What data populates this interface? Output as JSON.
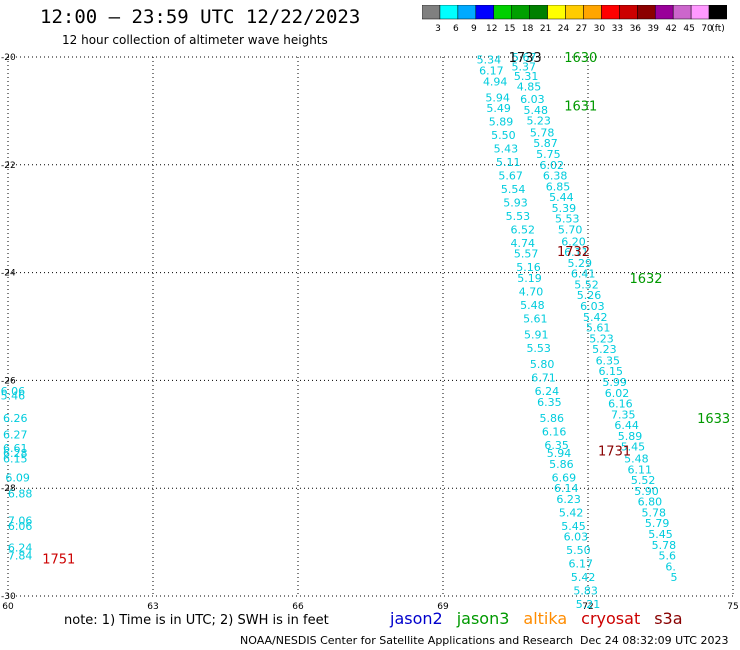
{
  "header": {
    "title": "12:00 – 23:59 UTC 12/22/2023",
    "subtitle": "12 hour collection of altimeter wave heights"
  },
  "colorbar": {
    "colors": [
      "#808080",
      "#00ffff",
      "#00aaff",
      "#0000ff",
      "#00d000",
      "#00a000",
      "#008000",
      "#ffff00",
      "#ffcc00",
      "#ffa500",
      "#ff0000",
      "#cc0000",
      "#8b0000",
      "#990099",
      "#cc66cc",
      "#ff99ff",
      "#000000"
    ],
    "labels": [
      "3",
      "6",
      "9",
      "12",
      "15",
      "18",
      "21",
      "24",
      "27",
      "30",
      "33",
      "36",
      "39",
      "42",
      "45",
      "70",
      "(ft)"
    ]
  },
  "note": "note:  1) Time is in UTC;  2) SWH is in feet",
  "legend": [
    {
      "name": "jason2",
      "color": "#0000cc"
    },
    {
      "name": "jason3",
      "color": "#009900"
    },
    {
      "name": "altika",
      "color": "#ff8c00"
    },
    {
      "name": "cryosat",
      "color": "#cc0000"
    },
    {
      "name": "s3a",
      "color": "#880000"
    }
  ],
  "footer": {
    "left": "NOAA/NESDIS Center for Satellite Applications and Research",
    "right": "Dec 24 08:32:09 UTC 2023"
  },
  "chart_data": {
    "type": "scatter",
    "xlim": [
      60,
      75
    ],
    "ylim": [
      -30,
      -20
    ],
    "xticks": [
      "60",
      "63",
      "66",
      "69",
      "72",
      "75"
    ],
    "yticks": [
      "-20",
      "-22",
      "-24",
      "-26",
      "-28",
      "-30"
    ],
    "grid": true,
    "text_color": "#00ccdd",
    "series": [
      {
        "points": [
          {
            "x": 69.95,
            "y": -20.05,
            "v": "5.34"
          },
          {
            "x": 70.0,
            "y": -20.25,
            "v": "6.17"
          },
          {
            "x": 70.08,
            "y": -20.45,
            "v": "4.94"
          },
          {
            "x": 70.13,
            "y": -20.75,
            "v": "5.94"
          },
          {
            "x": 70.15,
            "y": -20.95,
            "v": "5.49"
          },
          {
            "x": 70.2,
            "y": -21.2,
            "v": "5.89"
          },
          {
            "x": 70.25,
            "y": -21.45,
            "v": "5.50"
          },
          {
            "x": 70.3,
            "y": -21.7,
            "v": "5.43"
          },
          {
            "x": 70.35,
            "y": -21.95,
            "v": "5.11"
          },
          {
            "x": 70.4,
            "y": -22.2,
            "v": "5.67"
          },
          {
            "x": 70.45,
            "y": -22.45,
            "v": "5.54"
          },
          {
            "x": 70.5,
            "y": -22.7,
            "v": "5.93"
          },
          {
            "x": 70.55,
            "y": -22.95,
            "v": "5.53"
          },
          {
            "x": 70.65,
            "y": -23.2,
            "v": "6.52"
          },
          {
            "x": 70.65,
            "y": -23.45,
            "v": "4.74"
          },
          {
            "x": 70.72,
            "y": -23.65,
            "v": "5.57"
          },
          {
            "x": 70.77,
            "y": -23.9,
            "v": "5.16"
          },
          {
            "x": 70.79,
            "y": -24.1,
            "v": "5.19"
          },
          {
            "x": 70.82,
            "y": -24.35,
            "v": "4.70"
          },
          {
            "x": 70.85,
            "y": -24.6,
            "v": "5.48"
          },
          {
            "x": 70.91,
            "y": -24.85,
            "v": "5.61"
          },
          {
            "x": 70.93,
            "y": -25.15,
            "v": "5.91"
          },
          {
            "x": 70.98,
            "y": -25.4,
            "v": "5.53"
          },
          {
            "x": 71.05,
            "y": -25.7,
            "v": "5.80"
          },
          {
            "x": 71.08,
            "y": -25.95,
            "v": "6.71"
          },
          {
            "x": 71.15,
            "y": -26.2,
            "v": "6.24"
          },
          {
            "x": 71.2,
            "y": -26.4,
            "v": "6.35"
          },
          {
            "x": 71.25,
            "y": -26.7,
            "v": "5.86"
          },
          {
            "x": 71.3,
            "y": -26.95,
            "v": "6.16"
          },
          {
            "x": 71.35,
            "y": -27.2,
            "v": "6.35"
          },
          {
            "x": 71.4,
            "y": -27.35,
            "v": "5.94"
          },
          {
            "x": 71.45,
            "y": -27.55,
            "v": "5.86"
          },
          {
            "x": 71.5,
            "y": -27.8,
            "v": "6.69"
          },
          {
            "x": 71.55,
            "y": -28.0,
            "v": "6.14"
          },
          {
            "x": 71.6,
            "y": -28.2,
            "v": "6.23"
          },
          {
            "x": 71.65,
            "y": -28.45,
            "v": "5.42"
          },
          {
            "x": 71.7,
            "y": -28.7,
            "v": "5.45"
          },
          {
            "x": 71.75,
            "y": -28.9,
            "v": "6.03"
          },
          {
            "x": 71.8,
            "y": -29.15,
            "v": "5.50"
          },
          {
            "x": 71.85,
            "y": -29.4,
            "v": "6.17"
          },
          {
            "x": 71.9,
            "y": -29.65,
            "v": "5.42"
          },
          {
            "x": 71.95,
            "y": -29.9,
            "v": "5.83"
          },
          {
            "x": 72.0,
            "y": -30.15,
            "v": "5.21"
          }
        ]
      },
      {
        "points": [
          {
            "x": 70.68,
            "y": -20.0,
            "v": "5.67"
          },
          {
            "x": 70.67,
            "y": -20.18,
            "v": "5.37"
          },
          {
            "x": 70.72,
            "y": -20.35,
            "v": "5.31"
          },
          {
            "x": 70.78,
            "y": -20.55,
            "v": "4.85"
          },
          {
            "x": 70.85,
            "y": -20.78,
            "v": "6.03"
          },
          {
            "x": 70.92,
            "y": -20.98,
            "v": "5.48"
          },
          {
            "x": 70.98,
            "y": -21.18,
            "v": "5.23"
          },
          {
            "x": 71.05,
            "y": -21.4,
            "v": "5.78"
          },
          {
            "x": 71.12,
            "y": -21.6,
            "v": "5.87"
          },
          {
            "x": 71.18,
            "y": -21.8,
            "v": "5.75"
          },
          {
            "x": 71.25,
            "y": -22.0,
            "v": "6.02"
          },
          {
            "x": 71.32,
            "y": -22.2,
            "v": "6.38"
          },
          {
            "x": 71.38,
            "y": -22.4,
            "v": "6.85"
          },
          {
            "x": 71.45,
            "y": -22.6,
            "v": "5.44"
          },
          {
            "x": 71.5,
            "y": -22.8,
            "v": "5.39"
          },
          {
            "x": 71.57,
            "y": -23.0,
            "v": "5.53"
          },
          {
            "x": 71.63,
            "y": -23.2,
            "v": "5.70"
          },
          {
            "x": 71.7,
            "y": -23.42,
            "v": "6.20"
          },
          {
            "x": 71.76,
            "y": -23.62,
            "v": "6.11"
          },
          {
            "x": 71.83,
            "y": -23.82,
            "v": "5.29"
          },
          {
            "x": 71.9,
            "y": -24.02,
            "v": "6.41"
          },
          {
            "x": 71.97,
            "y": -24.22,
            "v": "5.52"
          },
          {
            "x": 72.02,
            "y": -24.42,
            "v": "5.26"
          },
          {
            "x": 72.09,
            "y": -24.62,
            "v": "6.03"
          },
          {
            "x": 72.15,
            "y": -24.82,
            "v": "5.42"
          },
          {
            "x": 72.21,
            "y": -25.02,
            "v": "5.61"
          },
          {
            "x": 72.28,
            "y": -25.22,
            "v": "5.23"
          },
          {
            "x": 72.34,
            "y": -25.42,
            "v": "5.23"
          },
          {
            "x": 72.41,
            "y": -25.63,
            "v": "6.35"
          },
          {
            "x": 72.47,
            "y": -25.83,
            "v": "6.15"
          },
          {
            "x": 72.55,
            "y": -26.03,
            "v": "5.99"
          },
          {
            "x": 72.6,
            "y": -26.23,
            "v": "6.02"
          },
          {
            "x": 72.67,
            "y": -26.43,
            "v": "6.16"
          },
          {
            "x": 72.73,
            "y": -26.63,
            "v": "7.35"
          },
          {
            "x": 72.8,
            "y": -26.83,
            "v": "6.44"
          },
          {
            "x": 72.87,
            "y": -27.03,
            "v": "5.89"
          },
          {
            "x": 72.93,
            "y": -27.23,
            "v": "5.45"
          },
          {
            "x": 73.0,
            "y": -27.45,
            "v": "5.48"
          },
          {
            "x": 73.07,
            "y": -27.65,
            "v": "6.11"
          },
          {
            "x": 73.14,
            "y": -27.85,
            "v": "5.52"
          },
          {
            "x": 73.21,
            "y": -28.05,
            "v": "5.90"
          },
          {
            "x": 73.28,
            "y": -28.25,
            "v": "6.80"
          },
          {
            "x": 73.36,
            "y": -28.45,
            "v": "5.78"
          },
          {
            "x": 73.43,
            "y": -28.65,
            "v": "5.79"
          },
          {
            "x": 73.5,
            "y": -28.85,
            "v": "5.45"
          },
          {
            "x": 73.57,
            "y": -29.05,
            "v": "5.78"
          },
          {
            "x": 73.64,
            "y": -29.25,
            "v": "5.6"
          },
          {
            "x": 73.71,
            "y": -29.45,
            "v": "6."
          },
          {
            "x": 73.78,
            "y": -29.65,
            "v": "5"
          }
        ]
      },
      {
        "points": [
          {
            "x": 60.1,
            "y": -26.2,
            "v": "6.06"
          },
          {
            "x": 60.1,
            "y": -26.28,
            "v": "5.46"
          },
          {
            "x": 60.15,
            "y": -26.7,
            "v": "6.26"
          },
          {
            "x": 60.15,
            "y": -27.0,
            "v": "6.27"
          },
          {
            "x": 60.15,
            "y": -27.25,
            "v": "6.61"
          },
          {
            "x": 60.15,
            "y": -27.35,
            "v": "6.28"
          },
          {
            "x": 60.15,
            "y": -27.45,
            "v": "6.15"
          },
          {
            "x": 60.2,
            "y": -27.8,
            "v": "6.09"
          },
          {
            "x": 60.25,
            "y": -28.1,
            "v": "6.88"
          },
          {
            "x": 60.25,
            "y": -28.6,
            "v": "7.06"
          },
          {
            "x": 60.25,
            "y": -28.7,
            "v": "6.06"
          },
          {
            "x": 60.25,
            "y": -29.1,
            "v": "6.24"
          },
          {
            "x": 60.25,
            "y": -29.25,
            "v": "7.84"
          }
        ]
      }
    ],
    "pass_labels": [
      {
        "x": 70.7,
        "y": -20.0,
        "label": "1733",
        "color": "#111111"
      },
      {
        "x": 71.85,
        "y": -20.0,
        "label": "1630",
        "color": "#009900"
      },
      {
        "x": 71.85,
        "y": -20.9,
        "label": "1631",
        "color": "#009900"
      },
      {
        "x": 71.7,
        "y": -23.6,
        "label": "1732",
        "color": "#880000"
      },
      {
        "x": 73.2,
        "y": -24.1,
        "label": "1632",
        "color": "#009900"
      },
      {
        "x": 72.55,
        "y": -27.3,
        "label": "1731",
        "color": "#880000"
      },
      {
        "x": 74.6,
        "y": -26.7,
        "label": "1633",
        "color": "#009900"
      },
      {
        "x": 61.05,
        "y": -29.3,
        "label": "1751",
        "color": "#cc0000"
      }
    ]
  }
}
